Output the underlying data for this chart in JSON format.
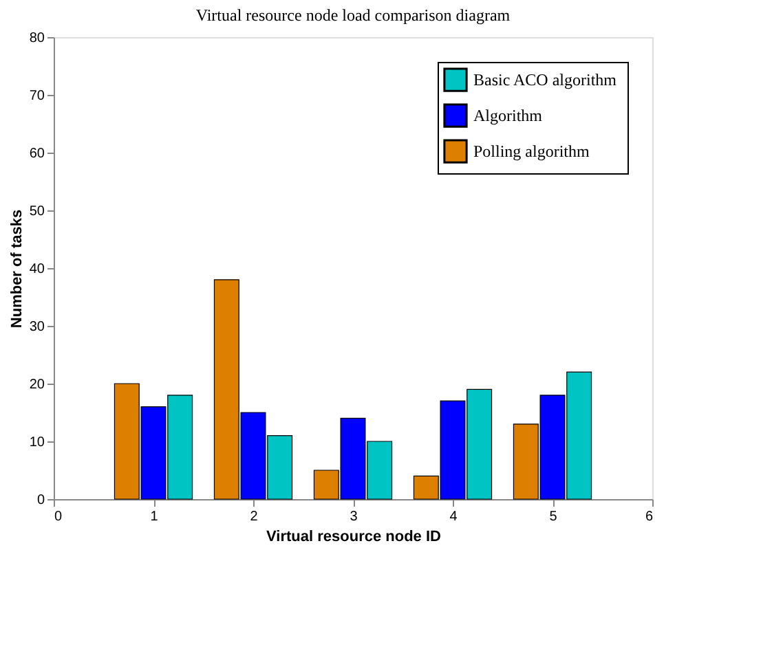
{
  "chart_data": {
    "type": "bar",
    "title": "Virtual resource node load comparison diagram",
    "xlabel": "Virtual resource node ID",
    "ylabel": "Number of tasks",
    "x": [
      1,
      2,
      3,
      4,
      5
    ],
    "series": [
      {
        "name": "Polling algorithm",
        "color": "#dd7f00",
        "values": [
          20,
          38,
          5,
          4,
          13
        ]
      },
      {
        "name": "Algorithm",
        "color": "#0000ff",
        "values": [
          16,
          15,
          14,
          17,
          18
        ]
      },
      {
        "name": "Basic ACO  algorithm",
        "color": "#00c4c4",
        "values": [
          18,
          11,
          10,
          19,
          22
        ]
      }
    ],
    "xlim": [
      0,
      6
    ],
    "xticks": [
      0,
      1,
      2,
      3,
      4,
      5,
      6
    ],
    "ylim": [
      0,
      80
    ],
    "yticks": [
      0,
      10,
      20,
      30,
      40,
      50,
      60,
      70,
      80
    ],
    "grid": false,
    "legend": "top right"
  }
}
